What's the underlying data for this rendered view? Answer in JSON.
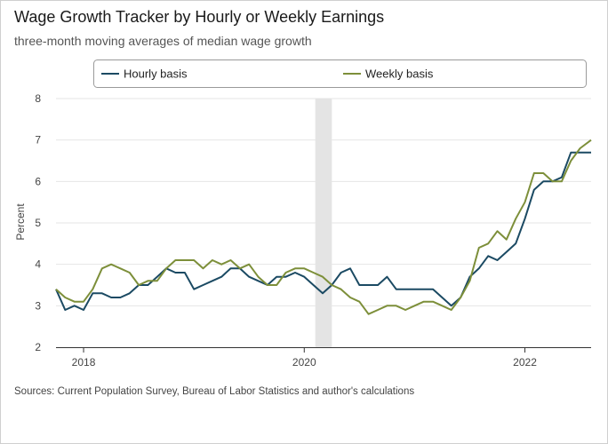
{
  "title": "Wage Growth Tracker by Hourly or Weekly Earnings",
  "subtitle": "three-month moving averages of median wage growth",
  "source": "Sources: Current Population Survey, Bureau of Labor Statistics and author's calculations",
  "colors": {
    "hourly": "#1b4a63",
    "weekly": "#7d8f3a",
    "recession": "#e4e4e4",
    "grid": "#e6e6e6",
    "axis": "#333333"
  },
  "chart_data": {
    "type": "line",
    "title": "Wage Growth Tracker by Hourly or Weekly Earnings",
    "subtitle": "three-month moving averages of median wage growth",
    "xlabel": "",
    "ylabel": "Percent",
    "ylim": [
      2,
      8
    ],
    "yticks": [
      2,
      3,
      4,
      5,
      6,
      7,
      8
    ],
    "xlim": [
      2017.75,
      2022.6
    ],
    "xticks": [
      {
        "value": 2018,
        "label": "2018"
      },
      {
        "value": 2020,
        "label": "2020"
      },
      {
        "value": 2022,
        "label": "2022"
      }
    ],
    "legend": "top",
    "recession": {
      "start": 2020.1,
      "end": 2020.25
    },
    "x": [
      2017.75,
      2017.833,
      2017.917,
      2018,
      2018.083,
      2018.167,
      2018.25,
      2018.333,
      2018.417,
      2018.5,
      2018.583,
      2018.667,
      2018.75,
      2018.833,
      2018.917,
      2019,
      2019.083,
      2019.167,
      2019.25,
      2019.333,
      2019.417,
      2019.5,
      2019.583,
      2019.667,
      2019.75,
      2019.833,
      2019.917,
      2020,
      2020.083,
      2020.167,
      2020.25,
      2020.333,
      2020.417,
      2020.5,
      2020.583,
      2020.667,
      2020.75,
      2020.833,
      2020.917,
      2021,
      2021.083,
      2021.167,
      2021.25,
      2021.333,
      2021.417,
      2021.5,
      2021.583,
      2021.667,
      2021.75,
      2021.833,
      2021.917,
      2022,
      2022.083,
      2022.167,
      2022.25,
      2022.333,
      2022.417,
      2022.5,
      2022.6
    ],
    "series": [
      {
        "name": "Hourly basis",
        "values": [
          3.4,
          2.9,
          3.0,
          2.9,
          3.3,
          3.3,
          3.2,
          3.2,
          3.3,
          3.5,
          3.5,
          3.7,
          3.9,
          3.8,
          3.8,
          3.4,
          3.5,
          3.6,
          3.7,
          3.9,
          3.9,
          3.7,
          3.6,
          3.5,
          3.7,
          3.7,
          3.8,
          3.7,
          3.5,
          3.3,
          3.5,
          3.8,
          3.9,
          3.5,
          3.5,
          3.5,
          3.7,
          3.4,
          3.4,
          3.4,
          3.4,
          3.4,
          3.2,
          3.0,
          3.2,
          3.7,
          3.9,
          4.2,
          4.1,
          4.3,
          4.5,
          5.1,
          5.8,
          6.0,
          6.0,
          6.1,
          6.7,
          6.7,
          6.7
        ]
      },
      {
        "name": "Weekly basis",
        "values": [
          3.4,
          3.2,
          3.1,
          3.1,
          3.4,
          3.9,
          4.0,
          3.9,
          3.8,
          3.5,
          3.6,
          3.6,
          3.9,
          4.1,
          4.1,
          4.1,
          3.9,
          4.1,
          4.0,
          4.1,
          3.9,
          4.0,
          3.7,
          3.5,
          3.5,
          3.8,
          3.9,
          3.9,
          3.8,
          3.7,
          3.5,
          3.4,
          3.2,
          3.1,
          2.8,
          2.9,
          3.0,
          3.0,
          2.9,
          3.0,
          3.1,
          3.1,
          3.0,
          2.9,
          3.2,
          3.6,
          4.4,
          4.5,
          4.8,
          4.6,
          5.1,
          5.5,
          6.2,
          6.2,
          6.0,
          6.0,
          6.5,
          6.8,
          7.0
        ]
      }
    ]
  }
}
